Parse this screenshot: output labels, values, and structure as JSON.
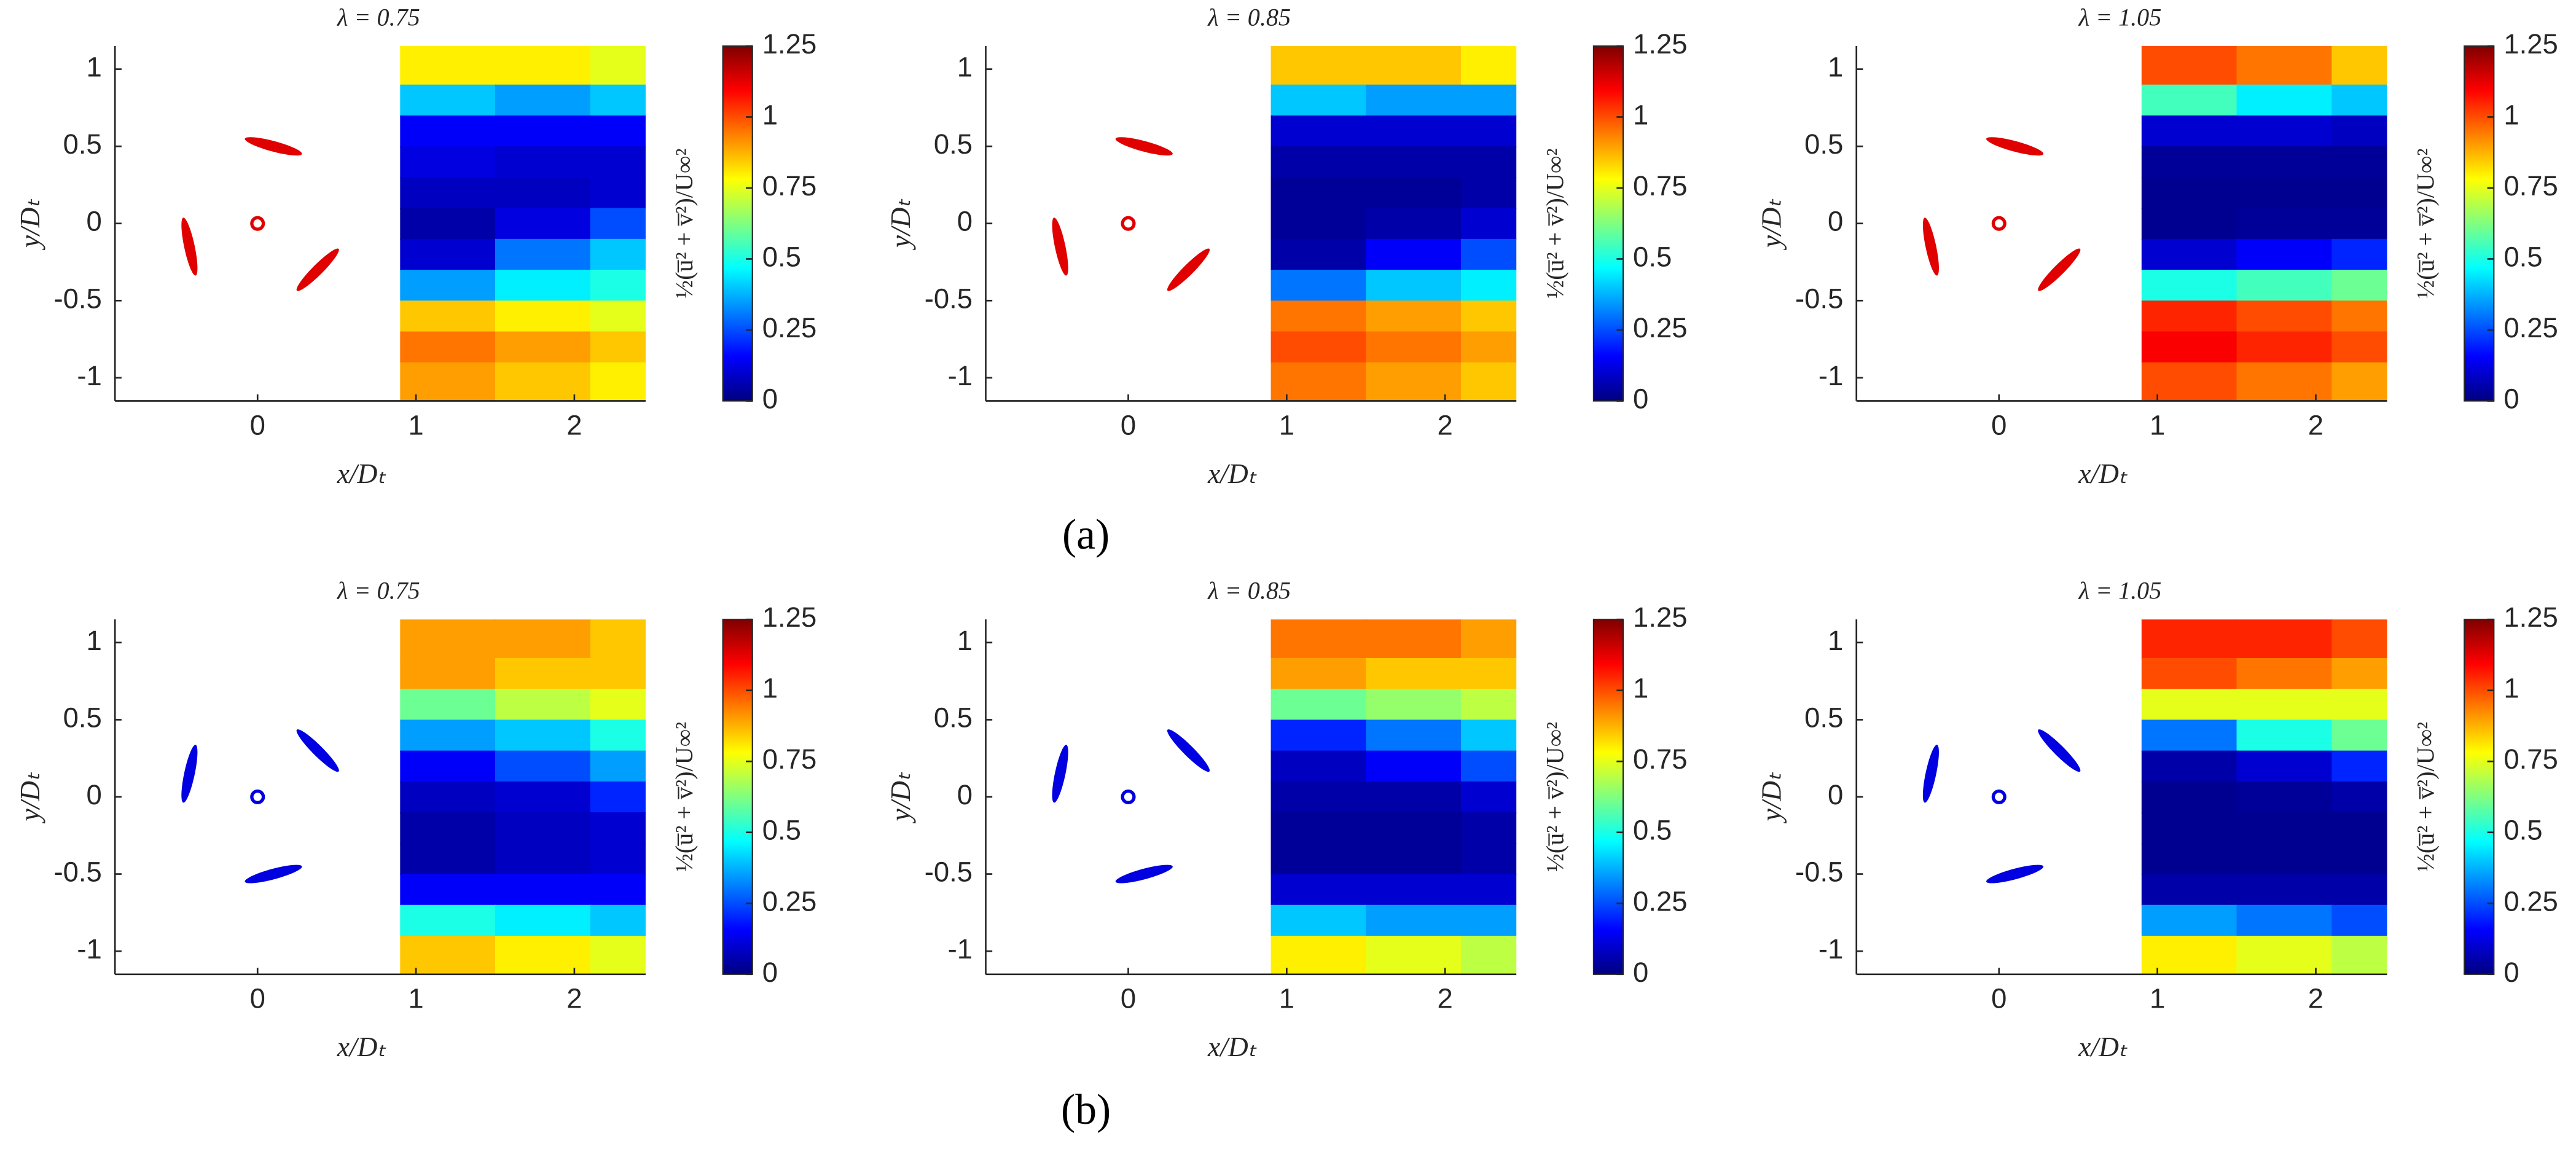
{
  "chart_data": [
    {
      "type": "heatmap",
      "title": "λ = 0.75",
      "xlabel": "x/Dₜ",
      "ylabel": "y/Dₜ",
      "colorbar_label": "½(u̅² + v̅²)/U∞²",
      "xlim": [
        -0.9,
        2.45
      ],
      "ylim": [
        -1.15,
        1.15
      ],
      "xticks": [
        0,
        1,
        2
      ],
      "yticks": [
        -1,
        -0.5,
        0,
        0.5,
        1
      ],
      "clim": [
        0,
        1.25
      ],
      "cticks": [
        0,
        0.25,
        0.5,
        0.75,
        1,
        1.25
      ],
      "colormap": "jet",
      "rotor_color": "#e00000",
      "x": [
        1.2,
        1.8,
        2.4
      ],
      "y": [
        1.0,
        0.8,
        0.6,
        0.4,
        0.2,
        0,
        -0.2,
        -0.4,
        -0.6,
        -0.8,
        -1.0
      ],
      "z": [
        [
          0.8,
          0.8,
          0.75
        ],
        [
          0.4,
          0.35,
          0.4
        ],
        [
          0.15,
          0.15,
          0.15
        ],
        [
          0.12,
          0.1,
          0.1
        ],
        [
          0.08,
          0.08,
          0.1
        ],
        [
          0.05,
          0.12,
          0.25
        ],
        [
          0.1,
          0.3,
          0.4
        ],
        [
          0.35,
          0.45,
          0.5
        ],
        [
          0.85,
          0.8,
          0.75
        ],
        [
          0.95,
          0.9,
          0.85
        ],
        [
          0.9,
          0.85,
          0.8
        ]
      ]
    },
    {
      "type": "heatmap",
      "title": "λ = 0.85",
      "xlabel": "x/Dₜ",
      "ylabel": "y/Dₜ",
      "colorbar_label": "½(u̅² + v̅²)/U∞²",
      "xlim": [
        -0.9,
        2.45
      ],
      "ylim": [
        -1.15,
        1.15
      ],
      "xticks": [
        0,
        1,
        2
      ],
      "yticks": [
        -1,
        -0.5,
        0,
        0.5,
        1
      ],
      "clim": [
        0,
        1.25
      ],
      "cticks": [
        0,
        0.25,
        0.5,
        0.75,
        1,
        1.25
      ],
      "colormap": "jet",
      "rotor_color": "#e00000",
      "x": [
        1.2,
        1.8,
        2.4
      ],
      "y": [
        1.0,
        0.8,
        0.6,
        0.4,
        0.2,
        0,
        -0.2,
        -0.4,
        -0.6,
        -0.8,
        -1.0
      ],
      "z": [
        [
          0.85,
          0.85,
          0.8
        ],
        [
          0.4,
          0.35,
          0.35
        ],
        [
          0.1,
          0.1,
          0.1
        ],
        [
          0.05,
          0.05,
          0.05
        ],
        [
          0.03,
          0.03,
          0.05
        ],
        [
          0.03,
          0.05,
          0.1
        ],
        [
          0.05,
          0.15,
          0.25
        ],
        [
          0.3,
          0.4,
          0.45
        ],
        [
          0.95,
          0.9,
          0.85
        ],
        [
          1.0,
          0.95,
          0.9
        ],
        [
          0.95,
          0.9,
          0.85
        ]
      ]
    },
    {
      "type": "heatmap",
      "title": "λ = 1.05",
      "xlabel": "x/Dₜ",
      "ylabel": "y/Dₜ",
      "colorbar_label": "½(u̅² + v̅²)/U∞²",
      "xlim": [
        -0.9,
        2.45
      ],
      "ylim": [
        -1.15,
        1.15
      ],
      "xticks": [
        0,
        1,
        2
      ],
      "yticks": [
        -1,
        -0.5,
        0,
        0.5,
        1
      ],
      "clim": [
        0,
        1.25
      ],
      "cticks": [
        0,
        0.25,
        0.5,
        0.75,
        1,
        1.25
      ],
      "colormap": "jet",
      "rotor_color": "#e00000",
      "x": [
        1.2,
        1.8,
        2.4
      ],
      "y": [
        1.0,
        0.8,
        0.6,
        0.4,
        0.2,
        0,
        -0.2,
        -0.4,
        -0.6,
        -0.8,
        -1.0
      ],
      "z": [
        [
          1.0,
          0.95,
          0.85
        ],
        [
          0.55,
          0.45,
          0.4
        ],
        [
          0.1,
          0.1,
          0.08
        ],
        [
          0.03,
          0.03,
          0.03
        ],
        [
          0.02,
          0.02,
          0.02
        ],
        [
          0.02,
          0.03,
          0.03
        ],
        [
          0.1,
          0.15,
          0.2
        ],
        [
          0.5,
          0.55,
          0.6
        ],
        [
          1.05,
          1.0,
          0.95
        ],
        [
          1.1,
          1.05,
          1.0
        ],
        [
          1.0,
          0.95,
          0.9
        ]
      ]
    },
    {
      "type": "heatmap",
      "title": "λ = 0.75",
      "xlabel": "x/Dₜ",
      "ylabel": "y/Dₜ",
      "colorbar_label": "½(u̅² + v̅²)/U∞²",
      "xlim": [
        -0.9,
        2.45
      ],
      "ylim": [
        -1.15,
        1.15
      ],
      "xticks": [
        0,
        1,
        2
      ],
      "yticks": [
        -1,
        -0.5,
        0,
        0.5,
        1
      ],
      "clim": [
        0,
        1.25
      ],
      "cticks": [
        0,
        0.25,
        0.5,
        0.75,
        1,
        1.25
      ],
      "colormap": "jet",
      "rotor_color": "#0000e0",
      "x": [
        1.2,
        1.8,
        2.4
      ],
      "y": [
        1.0,
        0.8,
        0.6,
        0.4,
        0.2,
        0,
        -0.2,
        -0.4,
        -0.6,
        -0.8,
        -1.0
      ],
      "z": [
        [
          0.9,
          0.9,
          0.85
        ],
        [
          0.9,
          0.85,
          0.85
        ],
        [
          0.6,
          0.7,
          0.75
        ],
        [
          0.35,
          0.4,
          0.5
        ],
        [
          0.15,
          0.25,
          0.35
        ],
        [
          0.08,
          0.1,
          0.2
        ],
        [
          0.05,
          0.08,
          0.1
        ],
        [
          0.05,
          0.08,
          0.1
        ],
        [
          0.15,
          0.15,
          0.15
        ],
        [
          0.5,
          0.45,
          0.4
        ],
        [
          0.85,
          0.8,
          0.75
        ]
      ]
    },
    {
      "type": "heatmap",
      "title": "λ = 0.85",
      "xlabel": "x/Dₜ",
      "ylabel": "y/Dₜ",
      "colorbar_label": "½(u̅² + v̅²)/U∞²",
      "xlim": [
        -0.9,
        2.45
      ],
      "ylim": [
        -1.15,
        1.15
      ],
      "xticks": [
        0,
        1,
        2
      ],
      "yticks": [
        -1,
        -0.5,
        0,
        0.5,
        1
      ],
      "clim": [
        0,
        1.25
      ],
      "cticks": [
        0,
        0.25,
        0.5,
        0.75,
        1,
        1.25
      ],
      "colormap": "jet",
      "rotor_color": "#0000e0",
      "x": [
        1.2,
        1.8,
        2.4
      ],
      "y": [
        1.0,
        0.8,
        0.6,
        0.4,
        0.2,
        0,
        -0.2,
        -0.4,
        -0.6,
        -0.8,
        -1.0
      ],
      "z": [
        [
          0.95,
          0.95,
          0.9
        ],
        [
          0.9,
          0.85,
          0.85
        ],
        [
          0.6,
          0.65,
          0.7
        ],
        [
          0.2,
          0.3,
          0.4
        ],
        [
          0.08,
          0.15,
          0.25
        ],
        [
          0.05,
          0.05,
          0.1
        ],
        [
          0.03,
          0.03,
          0.05
        ],
        [
          0.03,
          0.03,
          0.05
        ],
        [
          0.1,
          0.1,
          0.1
        ],
        [
          0.4,
          0.35,
          0.35
        ],
        [
          0.8,
          0.75,
          0.7
        ]
      ]
    },
    {
      "type": "heatmap",
      "title": "λ = 1.05",
      "xlabel": "x/Dₜ",
      "ylabel": "y/Dₜ",
      "colorbar_label": "½(u̅² + v̅²)/U∞²",
      "xlim": [
        -0.9,
        2.45
      ],
      "ylim": [
        -1.15,
        1.15
      ],
      "xticks": [
        0,
        1,
        2
      ],
      "yticks": [
        -1,
        -0.5,
        0,
        0.5,
        1
      ],
      "clim": [
        0,
        1.25
      ],
      "cticks": [
        0,
        0.25,
        0.5,
        0.75,
        1,
        1.25
      ],
      "colormap": "jet",
      "rotor_color": "#0000e0",
      "x": [
        1.2,
        1.8,
        2.4
      ],
      "y": [
        1.0,
        0.8,
        0.6,
        0.4,
        0.2,
        0,
        -0.2,
        -0.4,
        -0.6,
        -0.8,
        -1.0
      ],
      "z": [
        [
          1.05,
          1.05,
          1.0
        ],
        [
          1.0,
          0.95,
          0.9
        ],
        [
          0.75,
          0.75,
          0.75
        ],
        [
          0.3,
          0.5,
          0.6
        ],
        [
          0.05,
          0.1,
          0.2
        ],
        [
          0.02,
          0.03,
          0.05
        ],
        [
          0.02,
          0.02,
          0.02
        ],
        [
          0.02,
          0.02,
          0.02
        ],
        [
          0.05,
          0.05,
          0.05
        ],
        [
          0.35,
          0.3,
          0.25
        ],
        [
          0.8,
          0.75,
          0.7
        ]
      ]
    }
  ],
  "panel_labels": [
    "(a)",
    "(b)"
  ]
}
